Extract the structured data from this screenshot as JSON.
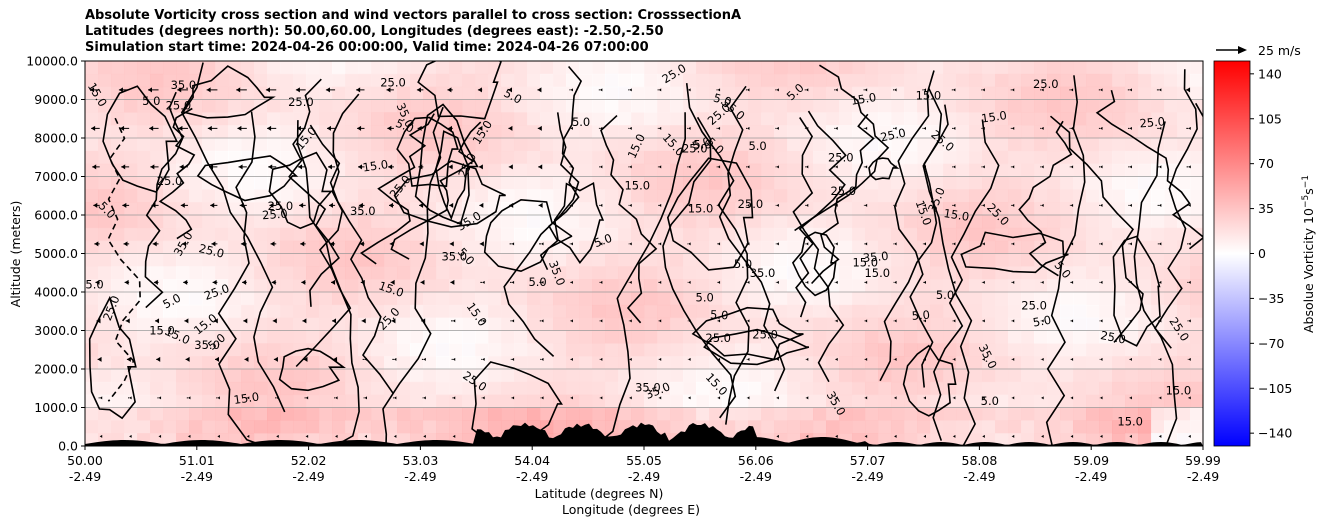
{
  "chart_data": {
    "type": "heatmap",
    "title_lines": [
      "Absolute Vorticity cross section and wind vectors parallel to cross section: CrosssectionA",
      "Latitudes (degrees north): 50.00,60.00, Longitudes (degrees east): -2.50,-2.50",
      "Simulation start time: 2024-04-26 00:00:00, Valid time: 2024-04-26 07:00:00"
    ],
    "ylabel": "Altitude (meters)",
    "xlabel_line1": "Latitude (degrees N)",
    "xlabel_line2": "Longitude (degrees E)",
    "ylim": [
      0,
      10000
    ],
    "yticks": [
      "0.0",
      "1000.0",
      "2000.0",
      "3000.0",
      "4000.0",
      "5000.0",
      "6000.0",
      "7000.0",
      "8000.0",
      "9000.0",
      "10000.0"
    ],
    "xticks": [
      {
        "lat": "50.00",
        "lon": "-2.49"
      },
      {
        "lat": "51.01",
        "lon": "-2.49"
      },
      {
        "lat": "52.02",
        "lon": "-2.49"
      },
      {
        "lat": "53.03",
        "lon": "-2.49"
      },
      {
        "lat": "54.04",
        "lon": "-2.49"
      },
      {
        "lat": "55.05",
        "lon": "-2.49"
      },
      {
        "lat": "56.06",
        "lon": "-2.49"
      },
      {
        "lat": "57.07",
        "lon": "-2.49"
      },
      {
        "lat": "58.08",
        "lon": "-2.49"
      },
      {
        "lat": "59.09",
        "lon": "-2.49"
      },
      {
        "lat": "59.99",
        "lon": "-2.49"
      }
    ],
    "horizontal_grid": true,
    "colorbar": {
      "label": "Absolue Vorticity 10",
      "label_exp": "−5",
      "label_unit": "s",
      "label_unit_exp": "−1",
      "range": [
        -150,
        150
      ],
      "ticks": [
        "140",
        "105",
        "70",
        "35",
        "0",
        "−35",
        "−70",
        "−105",
        "−140"
      ],
      "colormap": "bwr",
      "colors": {
        "low": "#0000ff",
        "mid": "#ffffff",
        "high": "#ff0000"
      }
    },
    "wind_key": {
      "label": "25 m/s"
    },
    "contour_levels": [
      5.0,
      15.0,
      25.0,
      35.0
    ],
    "contour_labels": [
      "5.0",
      "15.0",
      "25.0",
      "35.0"
    ],
    "field_description_values": {
      "background_vorticity_range": [
        5,
        40
      ],
      "terrain_color": "#000000"
    }
  }
}
